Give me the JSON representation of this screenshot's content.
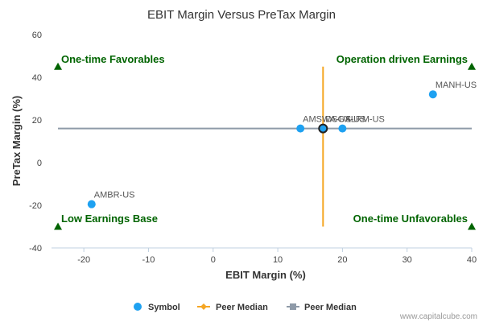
{
  "chart_data": {
    "type": "scatter",
    "title": "EBIT Margin Versus PreTax Margin",
    "xlabel": "EBIT Margin (%)",
    "ylabel": "PreTax Margin (%)",
    "xlim": [
      -25,
      40
    ],
    "ylim": [
      -40,
      60
    ],
    "x_ticks": [
      -20,
      -10,
      0,
      10,
      20,
      30,
      40
    ],
    "y_ticks": [
      -40,
      -20,
      0,
      20,
      40,
      60
    ],
    "grid": false,
    "points": [
      {
        "label": "AMSWA-US",
        "x": 13.5,
        "y": 16
      },
      {
        "label": "DSGX-US",
        "x": 17,
        "y": 16
      },
      {
        "label": "ALRM-US",
        "x": 20,
        "y": 16
      },
      {
        "label": "MANH-US",
        "x": 34,
        "y": 32
      },
      {
        "label": "AMBR-US",
        "x": -18.8,
        "y": -19.5
      }
    ],
    "peer_median": {
      "x": 17,
      "y": 16
    },
    "quadrant_labels": {
      "top_left": "One-time Favorables",
      "top_right": "Operation driven Earnings",
      "bottom_left": "Low Earnings Base",
      "bottom_right": "One-time Unfavorables"
    },
    "legend": {
      "position": "bottom",
      "items": [
        "Symbol",
        "Peer Median",
        "Peer Median"
      ]
    },
    "colors": {
      "symbol": "#1ea1f1",
      "peer_median_vertical": "#f5a623",
      "peer_median_horizontal": "#8e9aa8",
      "quadrant_text": "#006400",
      "marker": "#006400",
      "axis_text": "#444444"
    }
  },
  "watermark": "www.capitalcube.com"
}
